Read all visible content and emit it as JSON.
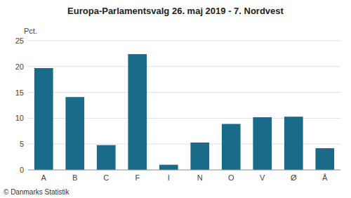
{
  "chart_data": {
    "type": "bar",
    "title": "Europa-Parlamentsvalg 26. maj 2019 - 7. Nordvest",
    "categories": [
      "A",
      "B",
      "C",
      "F",
      "I",
      "N",
      "O",
      "V",
      "Ø",
      "Å"
    ],
    "values": [
      19.7,
      14.1,
      4.8,
      22.4,
      1.0,
      5.3,
      8.9,
      10.2,
      10.3,
      4.2
    ],
    "color": "#1a6b8a",
    "ylabel": "Pct.",
    "ylim": [
      0,
      25
    ],
    "yticks": [
      0,
      5,
      10,
      15,
      20,
      25
    ],
    "grid": true,
    "footer": "© Danmarks Statistik"
  }
}
